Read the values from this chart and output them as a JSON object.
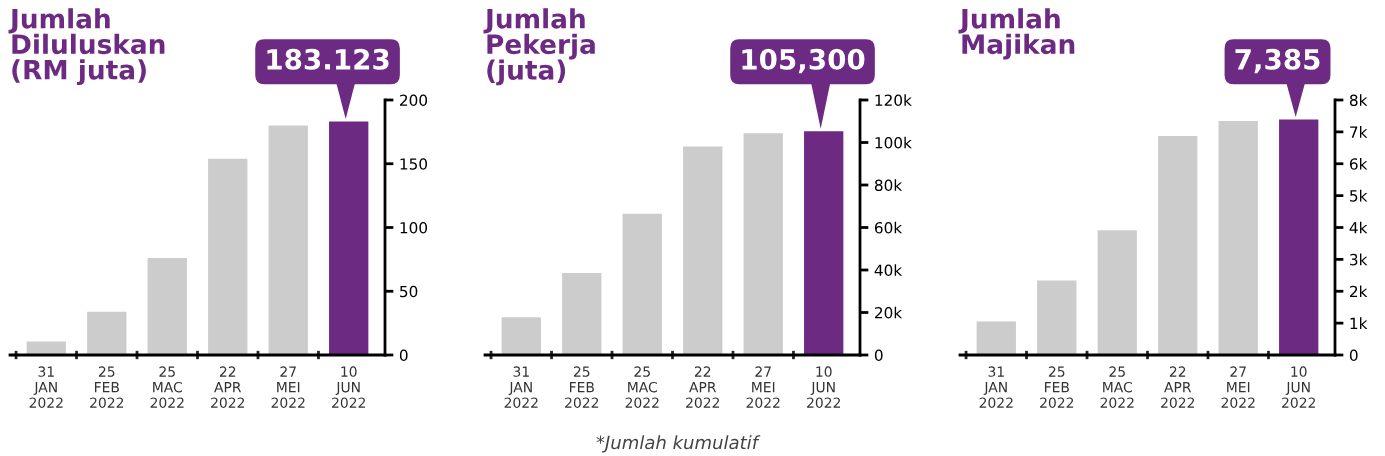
{
  "chart_data": [
    {
      "type": "bar",
      "title": "Jumlah\nDiluluskan\n(RM juta)",
      "categories": [
        "31\nJAN\n2022",
        "25\nFEB\n2022",
        "25\nMAC\n2022",
        "22\nAPR\n2022",
        "27\nMEI\n2022",
        "10\nJUN\n2022"
      ],
      "values": [
        10.5,
        34,
        76,
        154,
        180,
        183.123
      ],
      "colors": [
        "#cccccc",
        "#cccccc",
        "#cccccc",
        "#cccccc",
        "#cccccc",
        "#6d2a82"
      ],
      "value_labels": [
        null,
        null,
        null,
        null,
        null,
        "183.123"
      ],
      "ylim": [
        0,
        200
      ],
      "yticks": [
        0,
        50,
        100,
        150,
        200
      ],
      "grid": false
    },
    {
      "type": "bar",
      "title": "Jumlah\nPekerja\n(juta)",
      "categories": [
        "31\nJAN\n2022",
        "25\nFEB\n2022",
        "25\nMAC\n2022",
        "22\nAPR\n2022",
        "27\nMEI\n2022",
        "10\nJUN\n2022"
      ],
      "values": [
        17800,
        38600,
        66500,
        98100,
        104300,
        105300
      ],
      "colors": [
        "#cccccc",
        "#cccccc",
        "#cccccc",
        "#cccccc",
        "#cccccc",
        "#6d2a82"
      ],
      "value_labels": [
        null,
        null,
        null,
        null,
        null,
        "105,300"
      ],
      "ylim": [
        0,
        120000
      ],
      "yticks": [
        0,
        {
          "value": 20000,
          "label": "20k"
        },
        {
          "value": 40000,
          "label": "40k"
        },
        {
          "value": 60000,
          "label": "60k"
        },
        {
          "value": 80000,
          "label": "80k"
        },
        {
          "value": 100000,
          "label": "100k"
        },
        {
          "value": 120000,
          "label": "120k"
        }
      ],
      "grid": false,
      "annotations": [
        "*Jumlah kumulatif"
      ]
    },
    {
      "type": "bar",
      "title": "Jumlah\nMajikan",
      "categories": [
        "31\nJAN\n2022",
        "25\nFEB\n2022",
        "25\nMAC\n2022",
        "22\nAPR\n2022",
        "27\nMEI\n2022",
        "10\nJUN\n2022"
      ],
      "values": [
        1050,
        2340,
        3910,
        6870,
        7340,
        7385
      ],
      "colors": [
        "#cccccc",
        "#cccccc",
        "#cccccc",
        "#cccccc",
        "#cccccc",
        "#6d2a82"
      ],
      "value_labels": [
        null,
        null,
        null,
        null,
        null,
        "7,385"
      ],
      "ylim": [
        0,
        8000
      ],
      "yticks": [
        0,
        {
          "value": 1000,
          "label": "1k"
        },
        {
          "value": 2000,
          "label": "2k"
        },
        {
          "value": 3000,
          "label": "3k"
        },
        {
          "value": 4000,
          "label": "4k"
        },
        {
          "value": 5000,
          "label": "5k"
        },
        {
          "value": 6000,
          "label": "6k"
        },
        {
          "value": 7000,
          "label": "7k"
        },
        {
          "value": 8000,
          "label": "8k"
        }
      ],
      "grid": false
    }
  ]
}
